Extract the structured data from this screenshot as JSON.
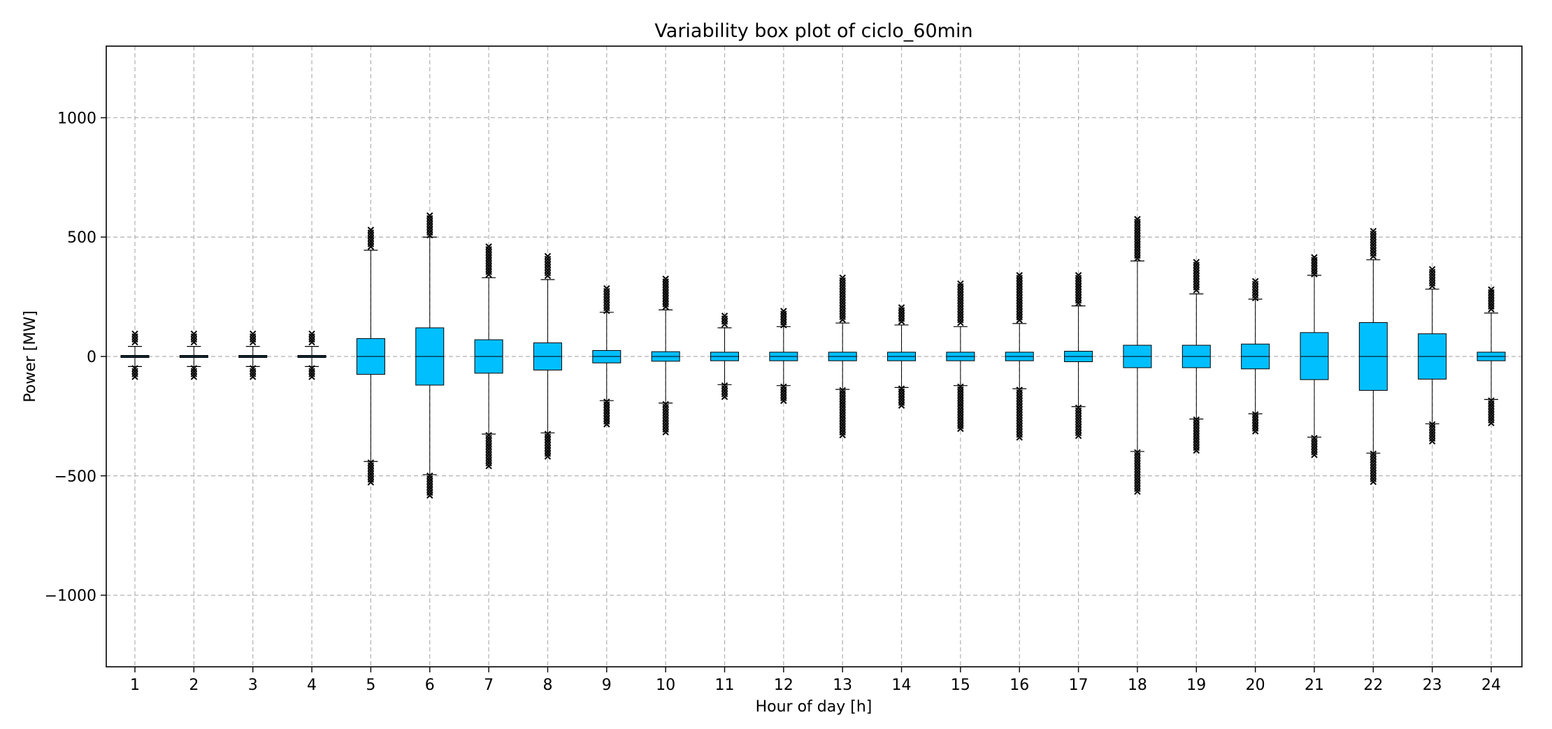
{
  "chart_data": {
    "type": "box",
    "title": "Variability box plot of ciclo_60min",
    "xlabel": "Hour of day [h]",
    "ylabel": "Power [MW]",
    "ylim": [
      -1300,
      1300
    ],
    "yticks": [
      1000,
      500,
      0,
      -500,
      -1000
    ],
    "ytick_labels": [
      "1000",
      "500",
      "0",
      "−500",
      "−1000"
    ],
    "grid": true,
    "colors": {
      "box_fill": "#00BFFF",
      "edge": "#000000",
      "grid": "#b0b0b0",
      "flat_box": "#1f4f66"
    },
    "categories": [
      "1",
      "2",
      "3",
      "4",
      "5",
      "6",
      "7",
      "8",
      "9",
      "10",
      "11",
      "12",
      "13",
      "14",
      "15",
      "16",
      "17",
      "18",
      "19",
      "20",
      "21",
      "22",
      "23",
      "24"
    ],
    "boxes": [
      {
        "q1": -2,
        "median": 0,
        "q3": 2,
        "whisker_low": -42,
        "whisker_high": 42,
        "outliers_low": [
          -95,
          -50
        ],
        "outliers_high": [
          50,
          95
        ]
      },
      {
        "q1": -2,
        "median": 0,
        "q3": 2,
        "whisker_low": -42,
        "whisker_high": 42,
        "outliers_low": [
          -95,
          -50
        ],
        "outliers_high": [
          50,
          95
        ]
      },
      {
        "q1": -2,
        "median": 0,
        "q3": 2,
        "whisker_low": -42,
        "whisker_high": 42,
        "outliers_low": [
          -95,
          -50
        ],
        "outliers_high": [
          50,
          95
        ]
      },
      {
        "q1": -2,
        "median": 0,
        "q3": 2,
        "whisker_low": -42,
        "whisker_high": 42,
        "outliers_low": [
          -95,
          -50
        ],
        "outliers_high": [
          50,
          95
        ]
      },
      {
        "q1": -75,
        "median": 0,
        "q3": 75,
        "whisker_low": -440,
        "whisker_high": 445,
        "outliers_low": [
          -530,
          -445
        ],
        "outliers_high": [
          450,
          530
        ]
      },
      {
        "q1": -120,
        "median": 0,
        "q3": 120,
        "whisker_low": -495,
        "whisker_high": 500,
        "outliers_low": [
          -590,
          -500
        ],
        "outliers_high": [
          505,
          590
        ]
      },
      {
        "q1": -70,
        "median": 0,
        "q3": 70,
        "whisker_low": -325,
        "whisker_high": 330,
        "outliers_low": [
          -460,
          -330
        ],
        "outliers_high": [
          335,
          460
        ]
      },
      {
        "q1": -57,
        "median": 0,
        "q3": 57,
        "whisker_low": -320,
        "whisker_high": 322,
        "outliers_low": [
          -420,
          -325
        ],
        "outliers_high": [
          327,
          420
        ]
      },
      {
        "q1": -27,
        "median": 0,
        "q3": 25,
        "whisker_low": -185,
        "whisker_high": 185,
        "outliers_low": [
          -285,
          -190
        ],
        "outliers_high": [
          190,
          285
        ]
      },
      {
        "q1": -20,
        "median": 0,
        "q3": 20,
        "whisker_low": -195,
        "whisker_high": 195,
        "outliers_low": [
          -325,
          -200
        ],
        "outliers_high": [
          200,
          325
        ]
      },
      {
        "q1": -18,
        "median": 0,
        "q3": 18,
        "whisker_low": -118,
        "whisker_high": 120,
        "outliers_low": [
          -170,
          -122
        ],
        "outliers_high": [
          125,
          170
        ]
      },
      {
        "q1": -18,
        "median": 0,
        "q3": 18,
        "whisker_low": -122,
        "whisker_high": 125,
        "outliers_low": [
          -190,
          -127
        ],
        "outliers_high": [
          130,
          190
        ]
      },
      {
        "q1": -18,
        "median": 0,
        "q3": 18,
        "whisker_low": -138,
        "whisker_high": 140,
        "outliers_low": [
          -330,
          -142
        ],
        "outliers_high": [
          145,
          330
        ]
      },
      {
        "q1": -18,
        "median": 0,
        "q3": 18,
        "whisker_low": -130,
        "whisker_high": 132,
        "outliers_low": [
          -205,
          -135
        ],
        "outliers_high": [
          137,
          205
        ]
      },
      {
        "q1": -18,
        "median": 0,
        "q3": 18,
        "whisker_low": -122,
        "whisker_high": 125,
        "outliers_low": [
          -305,
          -127
        ],
        "outliers_high": [
          130,
          305
        ]
      },
      {
        "q1": -18,
        "median": 0,
        "q3": 18,
        "whisker_low": -135,
        "whisker_high": 138,
        "outliers_low": [
          -340,
          -140
        ],
        "outliers_high": [
          142,
          340
        ]
      },
      {
        "q1": -22,
        "median": 0,
        "q3": 22,
        "whisker_low": -210,
        "whisker_high": 212,
        "outliers_low": [
          -340,
          -215
        ],
        "outliers_high": [
          217,
          340
        ]
      },
      {
        "q1": -47,
        "median": 0,
        "q3": 47,
        "whisker_low": -398,
        "whisker_high": 400,
        "outliers_low": [
          -575,
          -402
        ],
        "outliers_high": [
          405,
          575
        ]
      },
      {
        "q1": -47,
        "median": 0,
        "q3": 47,
        "whisker_low": -262,
        "whisker_high": 262,
        "outliers_low": [
          -395,
          -265
        ],
        "outliers_high": [
          267,
          395
        ]
      },
      {
        "q1": -52,
        "median": 0,
        "q3": 52,
        "whisker_low": -240,
        "whisker_high": 240,
        "outliers_low": [
          -315,
          -243
        ],
        "outliers_high": [
          245,
          315
        ]
      },
      {
        "q1": -97,
        "median": 0,
        "q3": 100,
        "whisker_low": -338,
        "whisker_high": 340,
        "outliers_low": [
          -415,
          -342
        ],
        "outliers_high": [
          345,
          415
        ]
      },
      {
        "q1": -142,
        "median": 0,
        "q3": 142,
        "whisker_low": -405,
        "whisker_high": 405,
        "outliers_low": [
          -525,
          -408
        ],
        "outliers_high": [
          410,
          525
        ]
      },
      {
        "q1": -95,
        "median": 0,
        "q3": 95,
        "whisker_low": -282,
        "whisker_high": 282,
        "outliers_low": [
          -365,
          -285
        ],
        "outliers_high": [
          287,
          365
        ]
      },
      {
        "q1": -18,
        "median": 0,
        "q3": 18,
        "whisker_low": -180,
        "whisker_high": 182,
        "outliers_low": [
          -280,
          -185
        ],
        "outliers_high": [
          187,
          280
        ]
      }
    ]
  }
}
